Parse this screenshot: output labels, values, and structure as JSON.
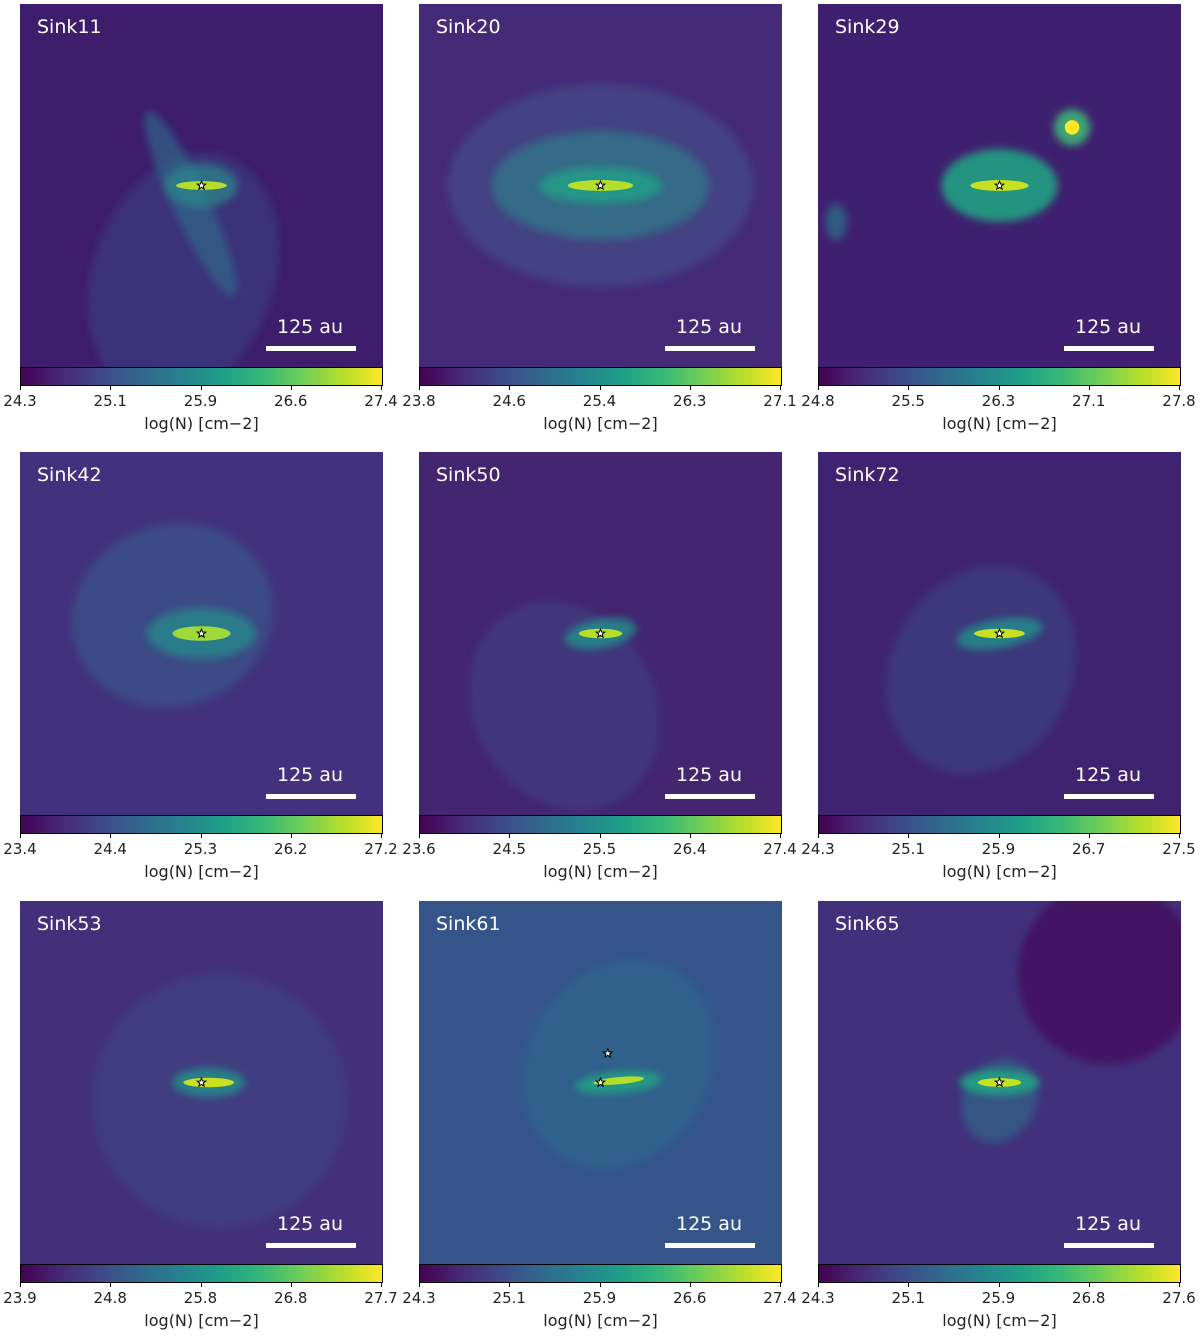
{
  "chart_data": [
    {
      "type": "heatmap",
      "title": "Sink11",
      "scalebar": "125 au",
      "colormap": "viridis",
      "colorbar_label": "log(N) [cm−2]",
      "ticks": [
        "24.3",
        "25.1",
        "25.9",
        "26.6",
        "27.4"
      ],
      "range": [
        24.3,
        27.4
      ],
      "bg": "#3d1d6c",
      "sinks": [
        [
          0.5,
          0.5
        ]
      ]
    },
    {
      "type": "heatmap",
      "title": "Sink20",
      "scalebar": "125 au",
      "colormap": "viridis",
      "colorbar_label": "log(N) [cm−2]",
      "ticks": [
        "23.8",
        "24.6",
        "25.4",
        "26.3",
        "27.1"
      ],
      "range": [
        23.8,
        27.1
      ],
      "bg": "#452a78",
      "sinks": [
        [
          0.5,
          0.5
        ]
      ]
    },
    {
      "type": "heatmap",
      "title": "Sink29",
      "scalebar": "125 au",
      "colormap": "viridis",
      "colorbar_label": "log(N) [cm−2]",
      "ticks": [
        "24.8",
        "25.5",
        "26.3",
        "27.1",
        "27.8"
      ],
      "range": [
        24.8,
        27.8
      ],
      "bg": "#3f2070",
      "sinks": [
        [
          0.5,
          0.5
        ]
      ]
    },
    {
      "type": "heatmap",
      "title": "Sink42",
      "scalebar": "125 au",
      "colormap": "viridis",
      "colorbar_label": "log(N) [cm−2]",
      "ticks": [
        "23.4",
        "24.4",
        "25.3",
        "26.2",
        "27.2"
      ],
      "range": [
        23.4,
        27.2
      ],
      "bg": "#42327e",
      "sinks": [
        [
          0.5,
          0.5
        ]
      ]
    },
    {
      "type": "heatmap",
      "title": "Sink50",
      "scalebar": "125 au",
      "colormap": "viridis",
      "colorbar_label": "log(N) [cm−2]",
      "ticks": [
        "23.6",
        "24.5",
        "25.5",
        "26.4",
        "27.4"
      ],
      "range": [
        23.6,
        27.4
      ],
      "bg": "#432570",
      "sinks": [
        [
          0.5,
          0.5
        ]
      ]
    },
    {
      "type": "heatmap",
      "title": "Sink72",
      "scalebar": "125 au",
      "colormap": "viridis",
      "colorbar_label": "log(N) [cm−2]",
      "ticks": [
        "24.3",
        "25.1",
        "25.9",
        "26.7",
        "27.5"
      ],
      "range": [
        24.3,
        27.5
      ],
      "bg": "#402370",
      "sinks": [
        [
          0.5,
          0.5
        ]
      ]
    },
    {
      "type": "heatmap",
      "title": "Sink53",
      "scalebar": "125 au",
      "colormap": "viridis",
      "colorbar_label": "log(N) [cm−2]",
      "ticks": [
        "23.9",
        "24.8",
        "25.8",
        "26.8",
        "27.7"
      ],
      "range": [
        23.9,
        27.7
      ],
      "bg": "#43307a",
      "sinks": [
        [
          0.5,
          0.5
        ]
      ]
    },
    {
      "type": "heatmap",
      "title": "Sink61",
      "scalebar": "125 au",
      "colormap": "viridis",
      "colorbar_label": "log(N) [cm−2]",
      "ticks": [
        "24.3",
        "25.1",
        "25.9",
        "26.6",
        "27.4"
      ],
      "range": [
        24.3,
        27.4
      ],
      "bg": "#35558a",
      "sinks": [
        [
          0.5,
          0.5
        ],
        [
          0.52,
          0.42
        ]
      ]
    },
    {
      "type": "heatmap",
      "title": "Sink65",
      "scalebar": "125 au",
      "colormap": "viridis",
      "colorbar_label": "log(N) [cm−2]",
      "ticks": [
        "24.3",
        "25.1",
        "25.9",
        "26.8",
        "27.6"
      ],
      "range": [
        24.3,
        27.6
      ],
      "bg": "#41317c",
      "sinks": [
        [
          0.5,
          0.5
        ]
      ]
    }
  ]
}
